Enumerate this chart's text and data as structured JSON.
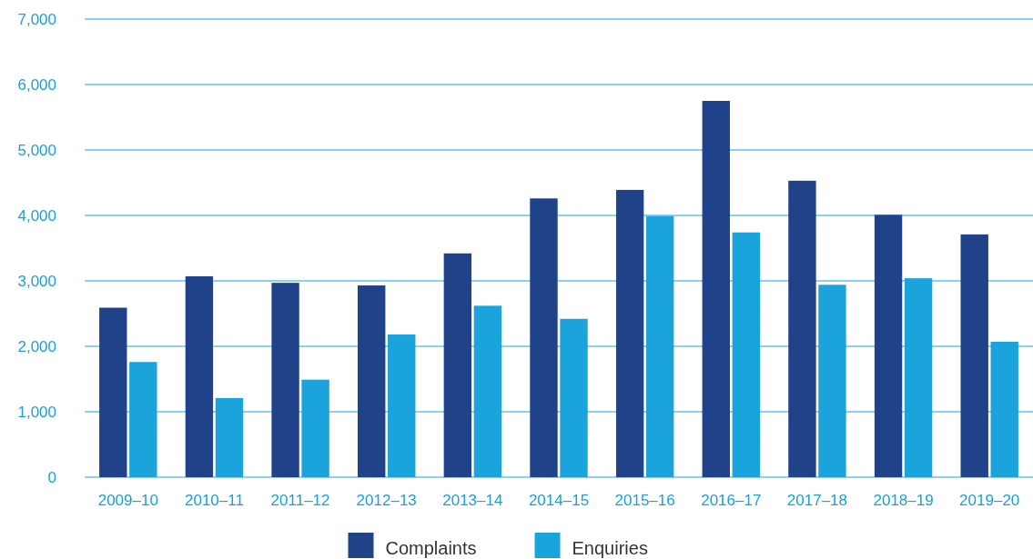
{
  "chart_data": {
    "type": "bar",
    "categories": [
      "2009–10",
      "2010–11",
      "2011–12",
      "2012–13",
      "2013–14",
      "2014–15",
      "2015–16",
      "2016–17",
      "2017–18",
      "2018–19",
      "2019–20"
    ],
    "series": [
      {
        "name": "Complaints",
        "color": "#1f4288",
        "values": [
          2590,
          3070,
          2970,
          2930,
          3420,
          4260,
          4390,
          5750,
          4530,
          4010,
          3710
        ]
      },
      {
        "name": "Enquiries",
        "color": "#1ba3dc",
        "values": [
          1760,
          1210,
          1490,
          2180,
          2620,
          2420,
          3990,
          3740,
          2940,
          3040,
          2070
        ]
      }
    ],
    "ylim": [
      0,
      7000
    ],
    "yticks": [
      {
        "value": 0,
        "label": "0"
      },
      {
        "value": 1000,
        "label": "1,000"
      },
      {
        "value": 2000,
        "label": "2,000"
      },
      {
        "value": 3000,
        "label": "3,000"
      },
      {
        "value": 4000,
        "label": "4,000"
      },
      {
        "value": 5000,
        "label": "5,000"
      },
      {
        "value": 6000,
        "label": "6,000"
      },
      {
        "value": 7000,
        "label": "7,000"
      }
    ],
    "grid": "y",
    "legend": "bottom"
  }
}
